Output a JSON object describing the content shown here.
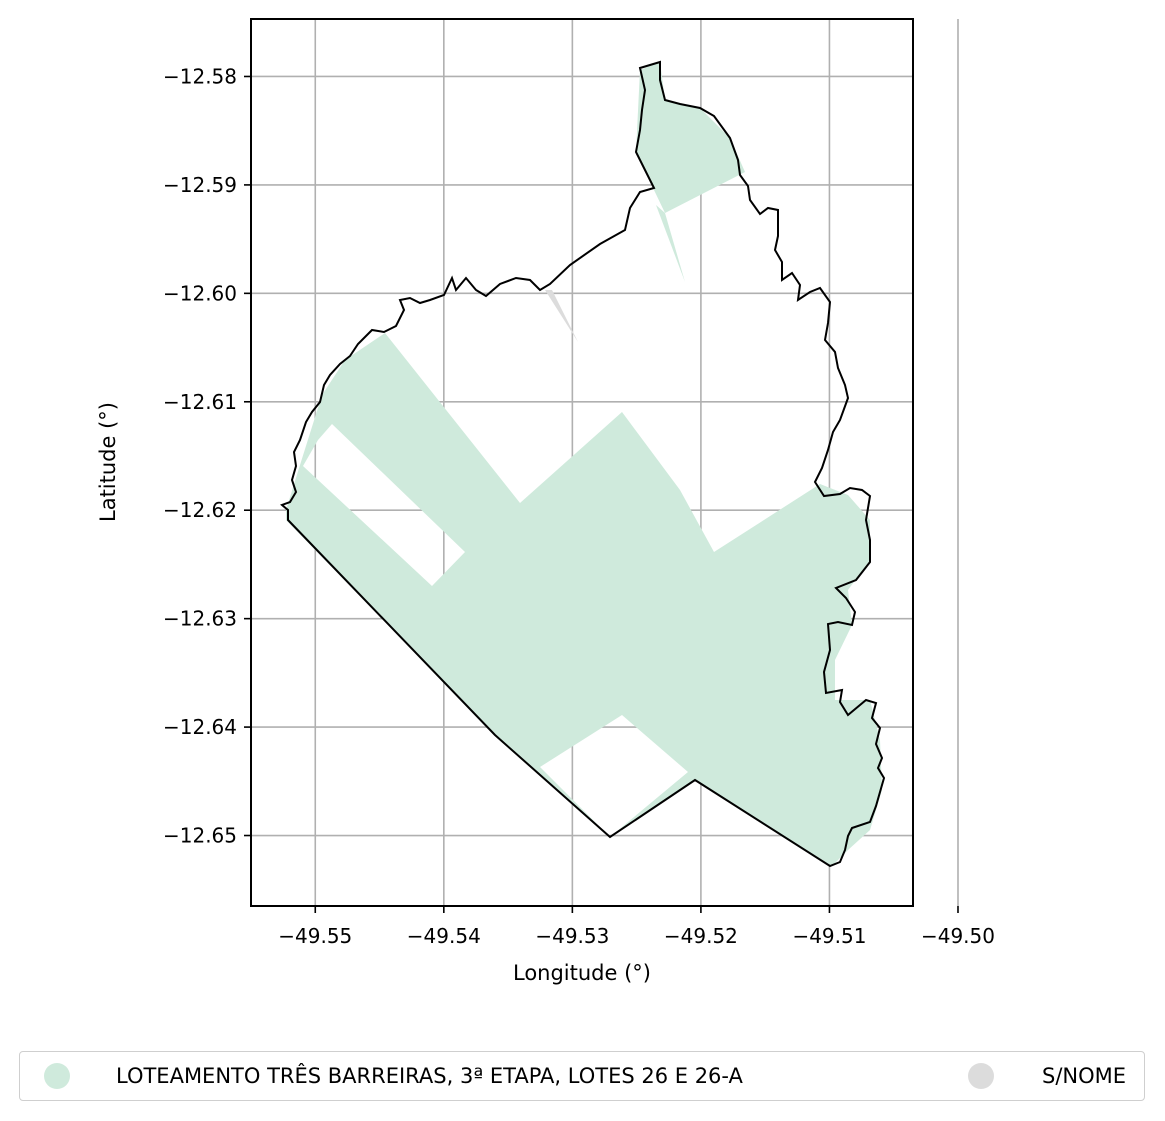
{
  "chart_data": {
    "type": "map",
    "xlabel": "Longitude (°)",
    "ylabel": "Latitude (°)",
    "xlim": [
      -49.555,
      -49.5035
    ],
    "ylim": [
      -12.6565,
      -12.5747
    ],
    "grid": true,
    "xticks": [
      -49.55,
      -49.54,
      -49.53,
      -49.52,
      -49.51,
      -49.5
    ],
    "xtick_labels": [
      "−49.55",
      "−49.54",
      "−49.53",
      "−49.52",
      "−49.51",
      "−49.50"
    ],
    "yticks": [
      -12.58,
      -12.59,
      -12.6,
      -12.61,
      -12.62,
      -12.63,
      -12.64,
      -12.65
    ],
    "ytick_labels": [
      "−12.58",
      "−12.59",
      "−12.60",
      "−12.61",
      "−12.62",
      "−12.63",
      "−12.64",
      "−12.65"
    ],
    "legend_position": "bottom",
    "series": [
      {
        "name": "LOTEAMENTO TRÊS BARREIRAS, 3ª ETAPA, LOTES 26 E 26-A",
        "color": "#cfeadc"
      },
      {
        "name": "S/NOME",
        "color": "#dcdcdc"
      }
    ],
    "boundary_color": "#000000"
  }
}
